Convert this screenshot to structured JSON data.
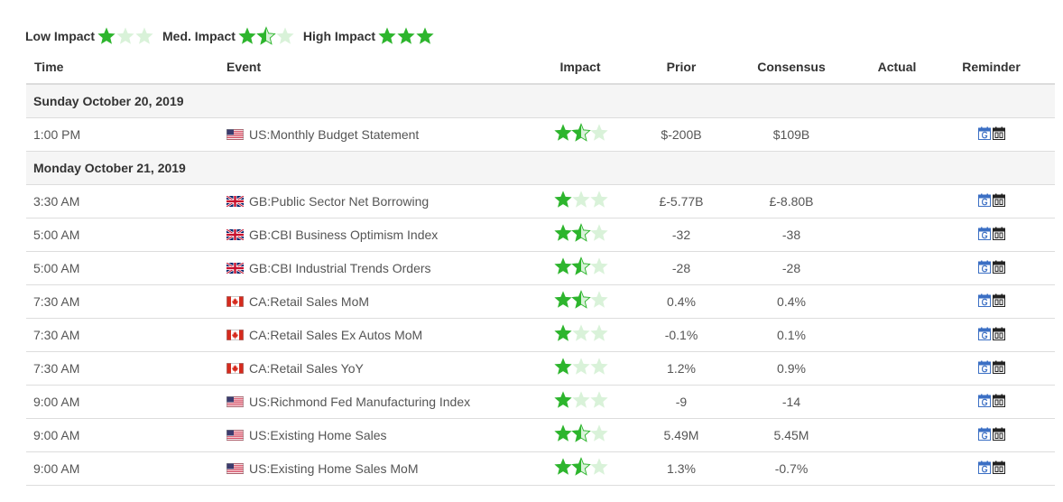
{
  "legend": [
    {
      "label": "Low Impact",
      "stars": [
        1,
        0,
        0
      ]
    },
    {
      "label": "Med. Impact",
      "stars": [
        1,
        0.5,
        0
      ]
    },
    {
      "label": "High Impact",
      "stars": [
        1,
        1,
        1
      ]
    }
  ],
  "columns": {
    "time": "Time",
    "event": "Event",
    "impact": "Impact",
    "prior": "Prior",
    "consensus": "Consensus",
    "actual": "Actual",
    "reminder": "Reminder"
  },
  "colors": {
    "star_full": "#2db52d",
    "star_empty": "#d9f2d9",
    "gcal_icon": "#3b6fc4",
    "ical_icon": "#222222"
  },
  "days": [
    {
      "date": "Sunday October 20, 2019",
      "events": [
        {
          "time": "1:00 PM",
          "flag": "us",
          "name": "US:Monthly Budget Statement",
          "impact": [
            1,
            0.5,
            0
          ],
          "prior": "$-200B",
          "consensus": "$109B",
          "actual": ""
        }
      ]
    },
    {
      "date": "Monday October 21, 2019",
      "events": [
        {
          "time": "3:30 AM",
          "flag": "gb",
          "name": "GB:Public Sector Net Borrowing",
          "impact": [
            1,
            0,
            0
          ],
          "prior": "£-5.77B",
          "consensus": "£-8.80B",
          "actual": ""
        },
        {
          "time": "5:00 AM",
          "flag": "gb",
          "name": "GB:CBI Business Optimism Index",
          "impact": [
            1,
            0.5,
            0
          ],
          "prior": "-32",
          "consensus": "-38",
          "actual": ""
        },
        {
          "time": "5:00 AM",
          "flag": "gb",
          "name": "GB:CBI Industrial Trends Orders",
          "impact": [
            1,
            0.5,
            0
          ],
          "prior": "-28",
          "consensus": "-28",
          "actual": ""
        },
        {
          "time": "7:30 AM",
          "flag": "ca",
          "name": "CA:Retail Sales MoM",
          "impact": [
            1,
            0.5,
            0
          ],
          "prior": "0.4%",
          "consensus": "0.4%",
          "actual": ""
        },
        {
          "time": "7:30 AM",
          "flag": "ca",
          "name": "CA:Retail Sales Ex Autos MoM",
          "impact": [
            1,
            0,
            0
          ],
          "prior": "-0.1%",
          "consensus": "0.1%",
          "actual": ""
        },
        {
          "time": "7:30 AM",
          "flag": "ca",
          "name": "CA:Retail Sales YoY",
          "impact": [
            1,
            0,
            0
          ],
          "prior": "1.2%",
          "consensus": "0.9%",
          "actual": ""
        },
        {
          "time": "9:00 AM",
          "flag": "us",
          "name": "US:Richmond Fed Manufacturing Index",
          "impact": [
            1,
            0,
            0
          ],
          "prior": "-9",
          "consensus": "-14",
          "actual": ""
        },
        {
          "time": "9:00 AM",
          "flag": "us",
          "name": "US:Existing Home Sales",
          "impact": [
            1,
            0.5,
            0
          ],
          "prior": "5.49M",
          "consensus": "5.45M",
          "actual": ""
        },
        {
          "time": "9:00 AM",
          "flag": "us",
          "name": "US:Existing Home Sales MoM",
          "impact": [
            1,
            0.5,
            0
          ],
          "prior": "1.3%",
          "consensus": "-0.7%",
          "actual": ""
        }
      ]
    }
  ]
}
